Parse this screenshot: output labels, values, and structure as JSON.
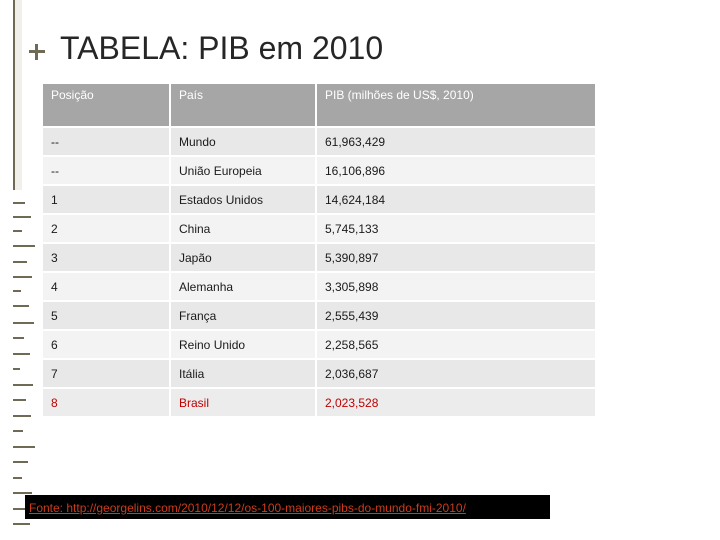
{
  "title": "TABELA: PIB em 2010",
  "table": {
    "headers": [
      "Posição",
      "País",
      "PIB (milhões de US$, 2010)"
    ],
    "rows": [
      {
        "position": "--",
        "country": "Mundo",
        "gdp": "61,963,429"
      },
      {
        "position": "--",
        "country": "União Europeia",
        "gdp": "16,106,896"
      },
      {
        "position": "1",
        "country": "Estados Unidos",
        "gdp": "14,624,184"
      },
      {
        "position": "2",
        "country": "China",
        "gdp": "5,745,133"
      },
      {
        "position": "3",
        "country": "Japão",
        "gdp": "5,390,897"
      },
      {
        "position": "4",
        "country": "Alemanha",
        "gdp": "3,305,898"
      },
      {
        "position": "5",
        "country": "França",
        "gdp": "2,555,439"
      },
      {
        "position": "6",
        "country": "Reino Unido",
        "gdp": "2,258,565"
      },
      {
        "position": "7",
        "country": "Itália",
        "gdp": "2,036,687"
      },
      {
        "position": "8",
        "country": "Brasil",
        "gdp": "2,023,528"
      }
    ],
    "highlight_row": "Brasil",
    "highlight_color": "#c00000",
    "header_color": "#a6a6a6"
  },
  "source": {
    "text": "Fonte: http://georgelins.com/2010/12/12/os-100-maiores-pibs-do-mundo-fmi-2010/"
  }
}
